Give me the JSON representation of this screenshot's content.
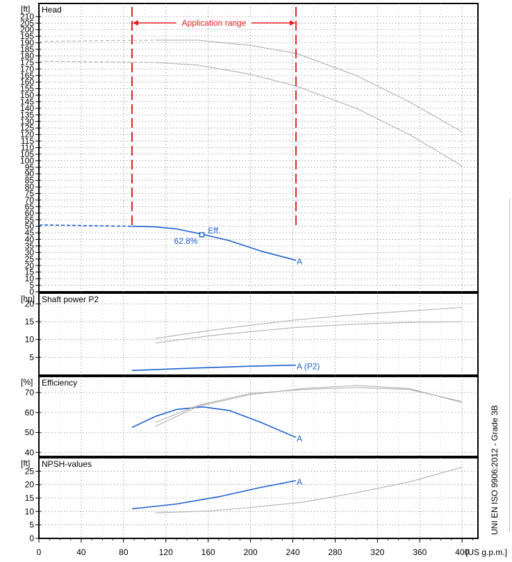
{
  "chart_data": [
    {
      "type": "line",
      "title": "Head",
      "ylabel": "[ft]",
      "xlabel": "[US g.p.m.]",
      "xlim": [
        0,
        415
      ],
      "ylim": [
        0,
        220
      ],
      "yticks": [
        0,
        5,
        10,
        15,
        20,
        25,
        30,
        35,
        40,
        45,
        50,
        55,
        60,
        65,
        70,
        75,
        80,
        85,
        90,
        95,
        100,
        105,
        110,
        115,
        120,
        125,
        130,
        135,
        140,
        145,
        150,
        155,
        160,
        165,
        170,
        175,
        180,
        185,
        190,
        195,
        200,
        205,
        210
      ],
      "application_range": {
        "label": "Application range",
        "x": [
          88,
          243
        ]
      },
      "annotations": {
        "eff_marker_label": "Eff.",
        "eff_value": "62.8%",
        "eff_point": [
          154,
          43.5
        ],
        "end_label": "A"
      },
      "series": [
        {
          "color": "#1a5fd0",
          "points": [
            [
              88,
              50
            ],
            [
              110,
              49.5
            ],
            [
              130,
              48
            ],
            [
              154,
              44
            ],
            [
              180,
              39
            ],
            [
              210,
              31
            ],
            [
              243,
              24
            ]
          ]
        },
        {
          "color": "#1a5fd0",
          "dashed": true,
          "points": [
            [
              0,
              51
            ],
            [
              88,
              50
            ]
          ]
        },
        {
          "color": "#b0b0b0",
          "points": [
            [
              110,
              192
            ],
            [
              150,
              192
            ],
            [
              200,
              188
            ],
            [
              243,
              182
            ],
            [
              300,
              165
            ],
            [
              350,
              145
            ],
            [
              400,
              122
            ]
          ]
        },
        {
          "color": "#b0b0b0",
          "dashed": true,
          "points": [
            [
              0,
              191
            ],
            [
              110,
              192
            ]
          ]
        },
        {
          "color": "#b0b0b0",
          "points": [
            [
              110,
              175
            ],
            [
              150,
              173
            ],
            [
              200,
              166
            ],
            [
              243,
              157
            ],
            [
              300,
              140
            ],
            [
              350,
              120
            ],
            [
              400,
              96
            ]
          ]
        },
        {
          "color": "#b0b0b0",
          "dashed": true,
          "points": [
            [
              0,
              176
            ],
            [
              110,
              175
            ]
          ]
        }
      ]
    },
    {
      "type": "line",
      "title": "Shaft power P2",
      "ylabel": "[hp]",
      "xlim": [
        0,
        415
      ],
      "ylim": [
        0,
        23
      ],
      "yticks": [
        5,
        10,
        15,
        20
      ],
      "annotations": {
        "end_label": "A (P2)"
      },
      "series": [
        {
          "color": "#1a5fd0",
          "points": [
            [
              88,
              1.3
            ],
            [
              150,
              2.0
            ],
            [
              200,
              2.5
            ],
            [
              243,
              2.8
            ]
          ]
        },
        {
          "color": "#b0b0b0",
          "points": [
            [
              110,
              10.3
            ],
            [
              160,
              12.5
            ],
            [
              200,
              14.0
            ],
            [
              243,
              15.5
            ],
            [
              300,
              17.0
            ],
            [
              350,
              18.0
            ],
            [
              400,
              19.0
            ]
          ]
        },
        {
          "color": "#b0b0b0",
          "points": [
            [
              110,
              9.0
            ],
            [
              160,
              11.0
            ],
            [
              200,
              12.2
            ],
            [
              243,
              13.4
            ],
            [
              300,
              14.3
            ],
            [
              350,
              14.8
            ],
            [
              400,
              15.0
            ]
          ]
        }
      ]
    },
    {
      "type": "line",
      "title": "Efficiency",
      "ylabel": "[%]",
      "xlim": [
        0,
        415
      ],
      "ylim": [
        38,
        78
      ],
      "yticks": [
        40,
        50,
        60,
        70
      ],
      "annotations": {
        "end_label": "A"
      },
      "series": [
        {
          "color": "#1a5fd0",
          "points": [
            [
              88,
              52.5
            ],
            [
              110,
              58
            ],
            [
              130,
              61.5
            ],
            [
              155,
              62.8
            ],
            [
              180,
              61
            ],
            [
              210,
              55
            ],
            [
              243,
              47.5
            ]
          ]
        },
        {
          "color": "#b0b0b0",
          "points": [
            [
              110,
              53
            ],
            [
              150,
              63
            ],
            [
              200,
              69
            ],
            [
              250,
              72
            ],
            [
              300,
              73.5
            ],
            [
              350,
              72
            ],
            [
              400,
              65
            ]
          ]
        },
        {
          "color": "#b0b0b0",
          "points": [
            [
              110,
              55
            ],
            [
              150,
              63.5
            ],
            [
              200,
              69.5
            ],
            [
              250,
              71.5
            ],
            [
              300,
              72.5
            ],
            [
              350,
              71.5
            ],
            [
              400,
              65.5
            ]
          ]
        }
      ]
    },
    {
      "type": "line",
      "title": "NPSH-values",
      "ylabel": "[ft]",
      "xlim": [
        0,
        415
      ],
      "ylim": [
        0,
        30
      ],
      "yticks": [
        0,
        5,
        10,
        15,
        20,
        25
      ],
      "xticks": [
        0,
        40,
        80,
        120,
        160,
        200,
        240,
        280,
        320,
        360,
        400
      ],
      "annotations": {
        "end_label": "A"
      },
      "series": [
        {
          "color": "#1a5fd0",
          "points": [
            [
              88,
              11
            ],
            [
              130,
              12.8
            ],
            [
              170,
              15.5
            ],
            [
              210,
              19
            ],
            [
              243,
              21.5
            ]
          ]
        },
        {
          "color": "#b0b0b0",
          "points": [
            [
              110,
              9.5
            ],
            [
              160,
              10.2
            ],
            [
              200,
              11.5
            ],
            [
              250,
              13.5
            ],
            [
              300,
              17
            ],
            [
              350,
              21
            ],
            [
              400,
              26.5
            ]
          ]
        }
      ]
    }
  ],
  "side_note": "UNI EN ISO 9906:2012 - Grade 3B"
}
